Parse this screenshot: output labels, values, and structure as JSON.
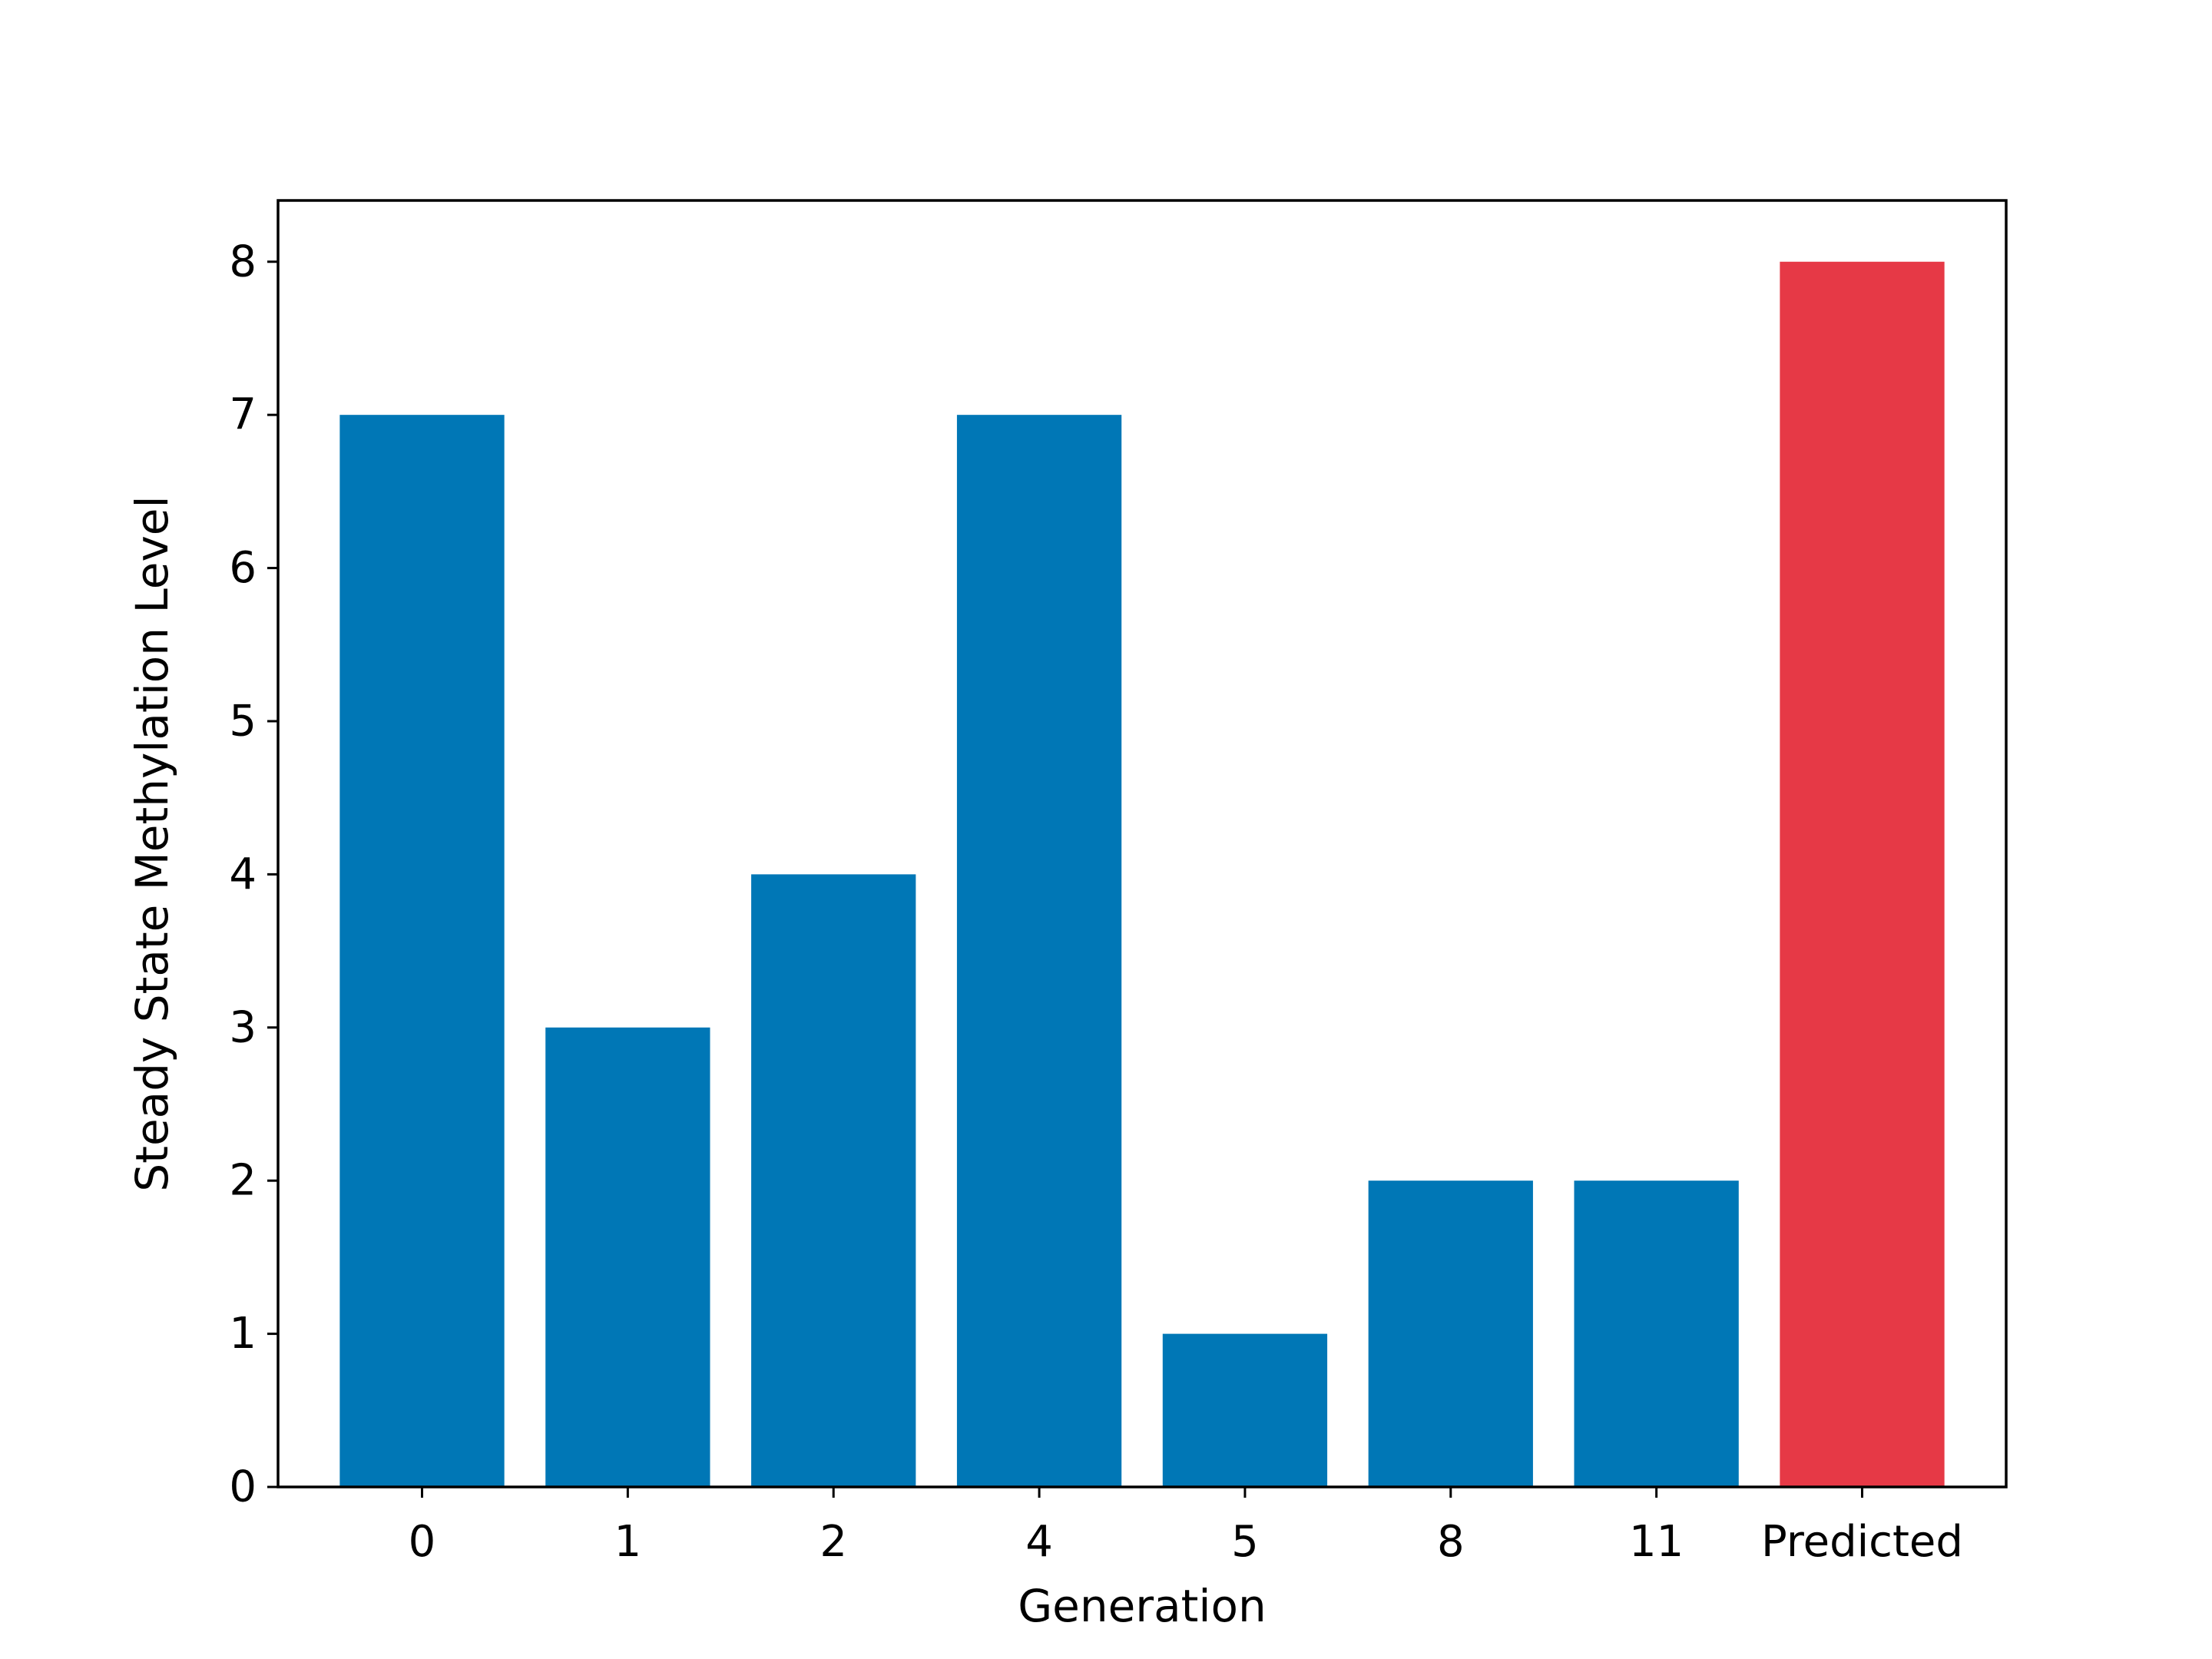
{
  "chart_data": {
    "type": "bar",
    "title": "",
    "xlabel": "Generation",
    "ylabel": "Steady State Methylation Level",
    "categories": [
      "0",
      "1",
      "2",
      "4",
      "5",
      "8",
      "11",
      "Predicted"
    ],
    "values": [
      7,
      3,
      4,
      7,
      1,
      2,
      2,
      8
    ],
    "ylim": [
      0,
      8.4
    ],
    "yticks": [
      0,
      1,
      2,
      3,
      4,
      5,
      6,
      7,
      8
    ],
    "grid": false,
    "colors": {
      "observed": "#0077b6",
      "predicted": "#e63946"
    },
    "bar_colors": [
      "#0077b6",
      "#0077b6",
      "#0077b6",
      "#0077b6",
      "#0077b6",
      "#0077b6",
      "#0077b6",
      "#e63946"
    ]
  }
}
